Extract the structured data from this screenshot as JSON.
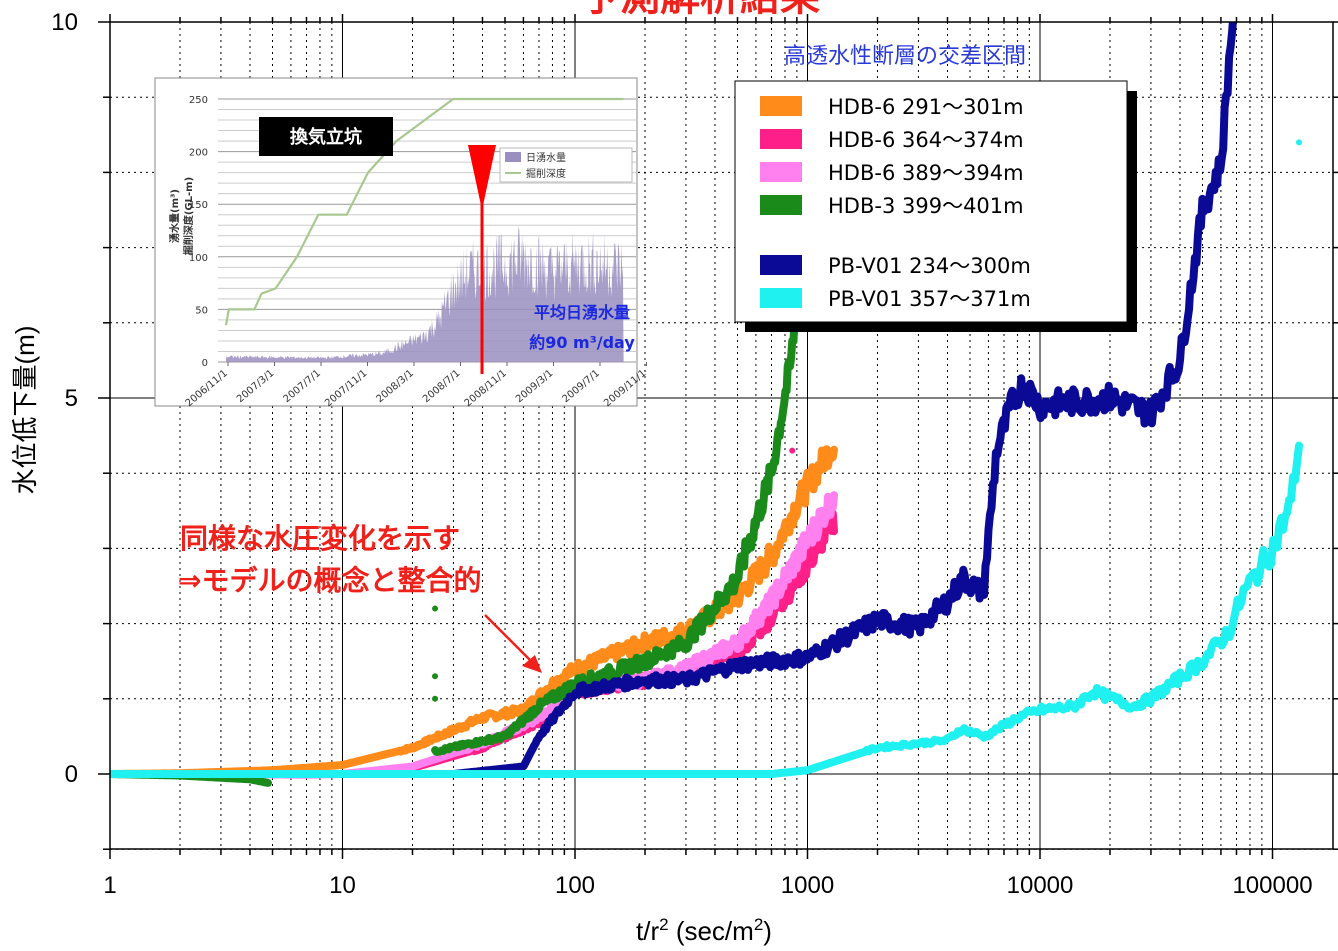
{
  "chart_data": [
    {
      "type": "scatter",
      "title": "",
      "xlabel": "t/r² (sec/m²)",
      "xlabel_base": "t/r",
      "xlabel_sup1": "2",
      "xlabel_mid": " (sec/m",
      "xlabel_sup2": "2",
      "xlabel_end": ")",
      "ylabel": "水位低下量(m)",
      "xscale": "log",
      "xlim": [
        1,
        200000
      ],
      "ylim": [
        -1,
        10
      ],
      "x_ticks": [
        "1",
        "10",
        "100",
        "1000",
        "10000",
        "100000"
      ],
      "y_ticks": [
        "0",
        "5",
        "10"
      ],
      "grid": true,
      "legend_title": "高透水性断層の交差区間",
      "legend_position": "top-right",
      "series": [
        {
          "name": "HDB-6  291〜301m",
          "color": "#ff8c1a",
          "points": [
            [
              1,
              0
            ],
            [
              2,
              0.01
            ],
            [
              5,
              0.05
            ],
            [
              10,
              0.12
            ],
            [
              20,
              0.35
            ],
            [
              40,
              0.75
            ],
            [
              60,
              0.85
            ],
            [
              80,
              1.2
            ],
            [
              100,
              1.4
            ],
            [
              200,
              1.75
            ],
            [
              300,
              1.9
            ],
            [
              500,
              2.35
            ],
            [
              700,
              2.9
            ],
            [
              900,
              3.6
            ],
            [
              1300,
              4.4
            ]
          ]
        },
        {
          "name": "HDB-6  364〜374m",
          "color": "#ff1f88",
          "points": [
            [
              1,
              0
            ],
            [
              3,
              0
            ],
            [
              10,
              0
            ],
            [
              20,
              0.08
            ],
            [
              40,
              0.35
            ],
            [
              70,
              0.7
            ],
            [
              100,
              1.1
            ],
            [
              200,
              1.25
            ],
            [
              300,
              1.35
            ],
            [
              500,
              1.6
            ],
            [
              700,
              2.1
            ],
            [
              1000,
              2.8
            ],
            [
              1300,
              3.4
            ]
          ]
        },
        {
          "name": "HDB-6  389〜394m",
          "color": "#ff80ee",
          "points": [
            [
              1,
              0
            ],
            [
              3,
              0
            ],
            [
              7,
              -0.01
            ],
            [
              10,
              0
            ],
            [
              20,
              0.1
            ],
            [
              40,
              0.4
            ],
            [
              70,
              0.75
            ],
            [
              100,
              1.15
            ],
            [
              200,
              1.25
            ],
            [
              300,
              1.4
            ],
            [
              500,
              1.75
            ],
            [
              700,
              2.3
            ],
            [
              1000,
              3.1
            ],
            [
              1300,
              3.7
            ]
          ]
        },
        {
          "name": "HDB-3  399〜401m",
          "color": "#1a8a1a",
          "points": [
            [
              1,
              0
            ],
            [
              2,
              -0.02
            ],
            [
              3,
              -0.05
            ],
            [
              4,
              -0.07
            ],
            [
              4.8,
              -0.12
            ],
            [
              25,
              0.3
            ],
            [
              35,
              0.4
            ],
            [
              50,
              0.5
            ],
            [
              70,
              0.9
            ],
            [
              100,
              1.2
            ],
            [
              200,
              1.5
            ],
            [
              300,
              1.75
            ],
            [
              500,
              2.6
            ],
            [
              700,
              4.0
            ],
            [
              850,
              5.5
            ],
            [
              900,
              6.3
            ]
          ]
        },
        {
          "name": "PB-V01  234〜300m",
          "color": "#0a0a96",
          "points": [
            [
              10,
              0
            ],
            [
              30,
              0
            ],
            [
              60,
              0.1
            ],
            [
              70,
              0.5
            ],
            [
              100,
              1.1
            ],
            [
              200,
              1.25
            ],
            [
              300,
              1.25
            ],
            [
              500,
              1.45
            ],
            [
              1000,
              1.55
            ],
            [
              2000,
              2.05
            ],
            [
              3000,
              1.95
            ],
            [
              4000,
              2.3
            ],
            [
              4700,
              2.6
            ],
            [
              5700,
              2.4
            ],
            [
              6500,
              4.3
            ],
            [
              7500,
              4.9
            ],
            [
              8500,
              5.2
            ],
            [
              10000,
              4.9
            ],
            [
              20000,
              5.0
            ],
            [
              30000,
              4.8
            ],
            [
              40000,
              5.5
            ],
            [
              50000,
              7.5
            ],
            [
              60000,
              8.1
            ],
            [
              68000,
              10.2
            ]
          ]
        },
        {
          "name": "PB-V01  357〜371m",
          "color": "#1ff0f0",
          "points": [
            [
              1,
              0
            ],
            [
              10,
              0
            ],
            [
              100,
              0
            ],
            [
              700,
              0
            ],
            [
              1000,
              0.05
            ],
            [
              2000,
              0.35
            ],
            [
              4000,
              0.45
            ],
            [
              4600,
              0.6
            ],
            [
              5800,
              0.5
            ],
            [
              8000,
              0.75
            ],
            [
              10000,
              0.85
            ],
            [
              14000,
              0.9
            ],
            [
              17000,
              1.1
            ],
            [
              25000,
              0.9
            ],
            [
              30000,
              1.0
            ],
            [
              50000,
              1.5
            ],
            [
              65000,
              1.9
            ],
            [
              75000,
              2.4
            ],
            [
              100000,
              3.0
            ],
            [
              120000,
              3.6
            ],
            [
              130000,
              4.4
            ]
          ]
        }
      ],
      "outliers": [
        {
          "series": 3,
          "x": 25,
          "y": 2.2
        },
        {
          "series": 3,
          "x": 25,
          "y": 1.3
        },
        {
          "series": 3,
          "x": 25,
          "y": 1.0
        },
        {
          "series": 1,
          "x": 860,
          "y": 4.3
        },
        {
          "series": 5,
          "x": 130000,
          "y": 8.4
        }
      ],
      "annotation": {
        "line1": "同様な水圧変化を示す",
        "line2": "⇒モデルの概念と整合的"
      },
      "top_title_fragment": "予測解析結果"
    },
    {
      "type": "area",
      "title": "換気立坑",
      "ylabel": "湧水量(m³) 掘削深度(GL-m)",
      "ylabel_line1": "湧水量(m³)",
      "ylabel_line2": "掘削深度(GL-m)",
      "ylim": [
        0,
        250
      ],
      "y_ticks": [
        "0",
        "50",
        "100",
        "150",
        "200",
        "250"
      ],
      "x_ticks": [
        "2006/11/1",
        "2007/3/1",
        "2007/7/1",
        "2007/11/1",
        "2008/3/1",
        "2008/7/1",
        "2008/11/1",
        "2009/3/1",
        "2009/7/1",
        "2009/11/1"
      ],
      "legend": [
        "日湧水量",
        "掘削深度"
      ],
      "colors": {
        "inflow": "#9a8fc0",
        "depth": "#a8c890",
        "marker": "#ff0000"
      },
      "excavation_depth": [
        [
          0,
          35
        ],
        [
          0.2,
          50
        ],
        [
          2,
          50
        ],
        [
          2.5,
          65
        ],
        [
          3.5,
          70
        ],
        [
          5,
          100
        ],
        [
          6.5,
          140
        ],
        [
          8.5,
          140
        ],
        [
          10,
          180
        ],
        [
          12,
          210
        ],
        [
          14,
          230
        ],
        [
          16,
          250
        ],
        [
          28,
          250
        ]
      ],
      "daily_inflow_levels": [
        [
          0,
          5
        ],
        [
          7,
          4
        ],
        [
          11,
          8
        ],
        [
          14,
          25
        ],
        [
          15,
          40
        ],
        [
          16,
          70
        ],
        [
          17,
          85
        ],
        [
          19,
          90
        ],
        [
          21,
          100
        ],
        [
          23,
          85
        ],
        [
          25,
          95
        ],
        [
          28,
          90
        ]
      ],
      "annotation": {
        "line1": "平均日湧水量",
        "line2": "約90 m³/day"
      }
    }
  ]
}
